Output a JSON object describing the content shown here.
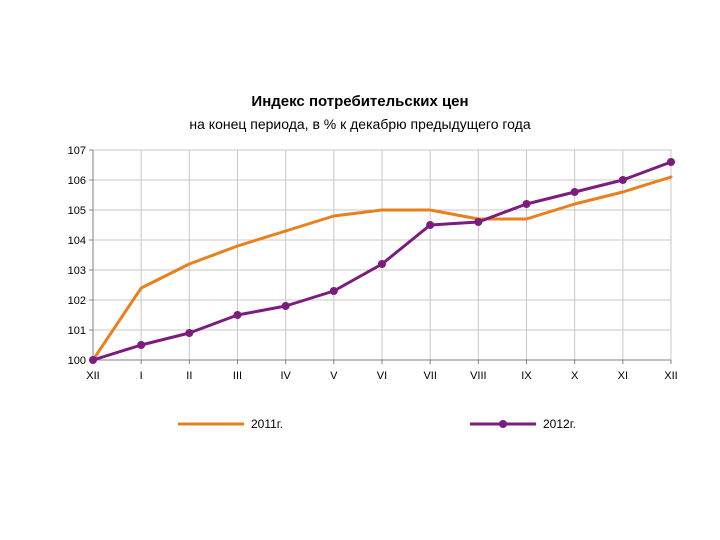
{
  "chart_data": {
    "type": "line",
    "title": "Индекс потребительских цен",
    "subtitle": "на конец периода, в % к декабрю предыдущего года",
    "xlabel": "",
    "ylabel": "",
    "categories": [
      "XII",
      "I",
      "II",
      "III",
      "IV",
      "V",
      "VI",
      "VII",
      "VIII",
      "IX",
      "X",
      "XI",
      "XII"
    ],
    "ylim": [
      100,
      107
    ],
    "yticks": [
      "100",
      "101",
      "102",
      "103",
      "104",
      "105",
      "106",
      "107"
    ],
    "grid": true,
    "legend_position": "bottom",
    "series": [
      {
        "name": "2011г.",
        "color": "#E8801E",
        "markers": false,
        "values": [
          100.0,
          102.4,
          103.2,
          103.8,
          104.3,
          104.8,
          105.0,
          105.0,
          104.7,
          104.7,
          105.2,
          105.6,
          106.1
        ]
      },
      {
        "name": "2012г.",
        "color": "#7B1C7E",
        "markers": true,
        "values": [
          100.0,
          100.5,
          100.9,
          101.5,
          101.8,
          102.3,
          103.2,
          104.5,
          104.6,
          105.2,
          105.6,
          106.0,
          106.6
        ]
      }
    ]
  }
}
